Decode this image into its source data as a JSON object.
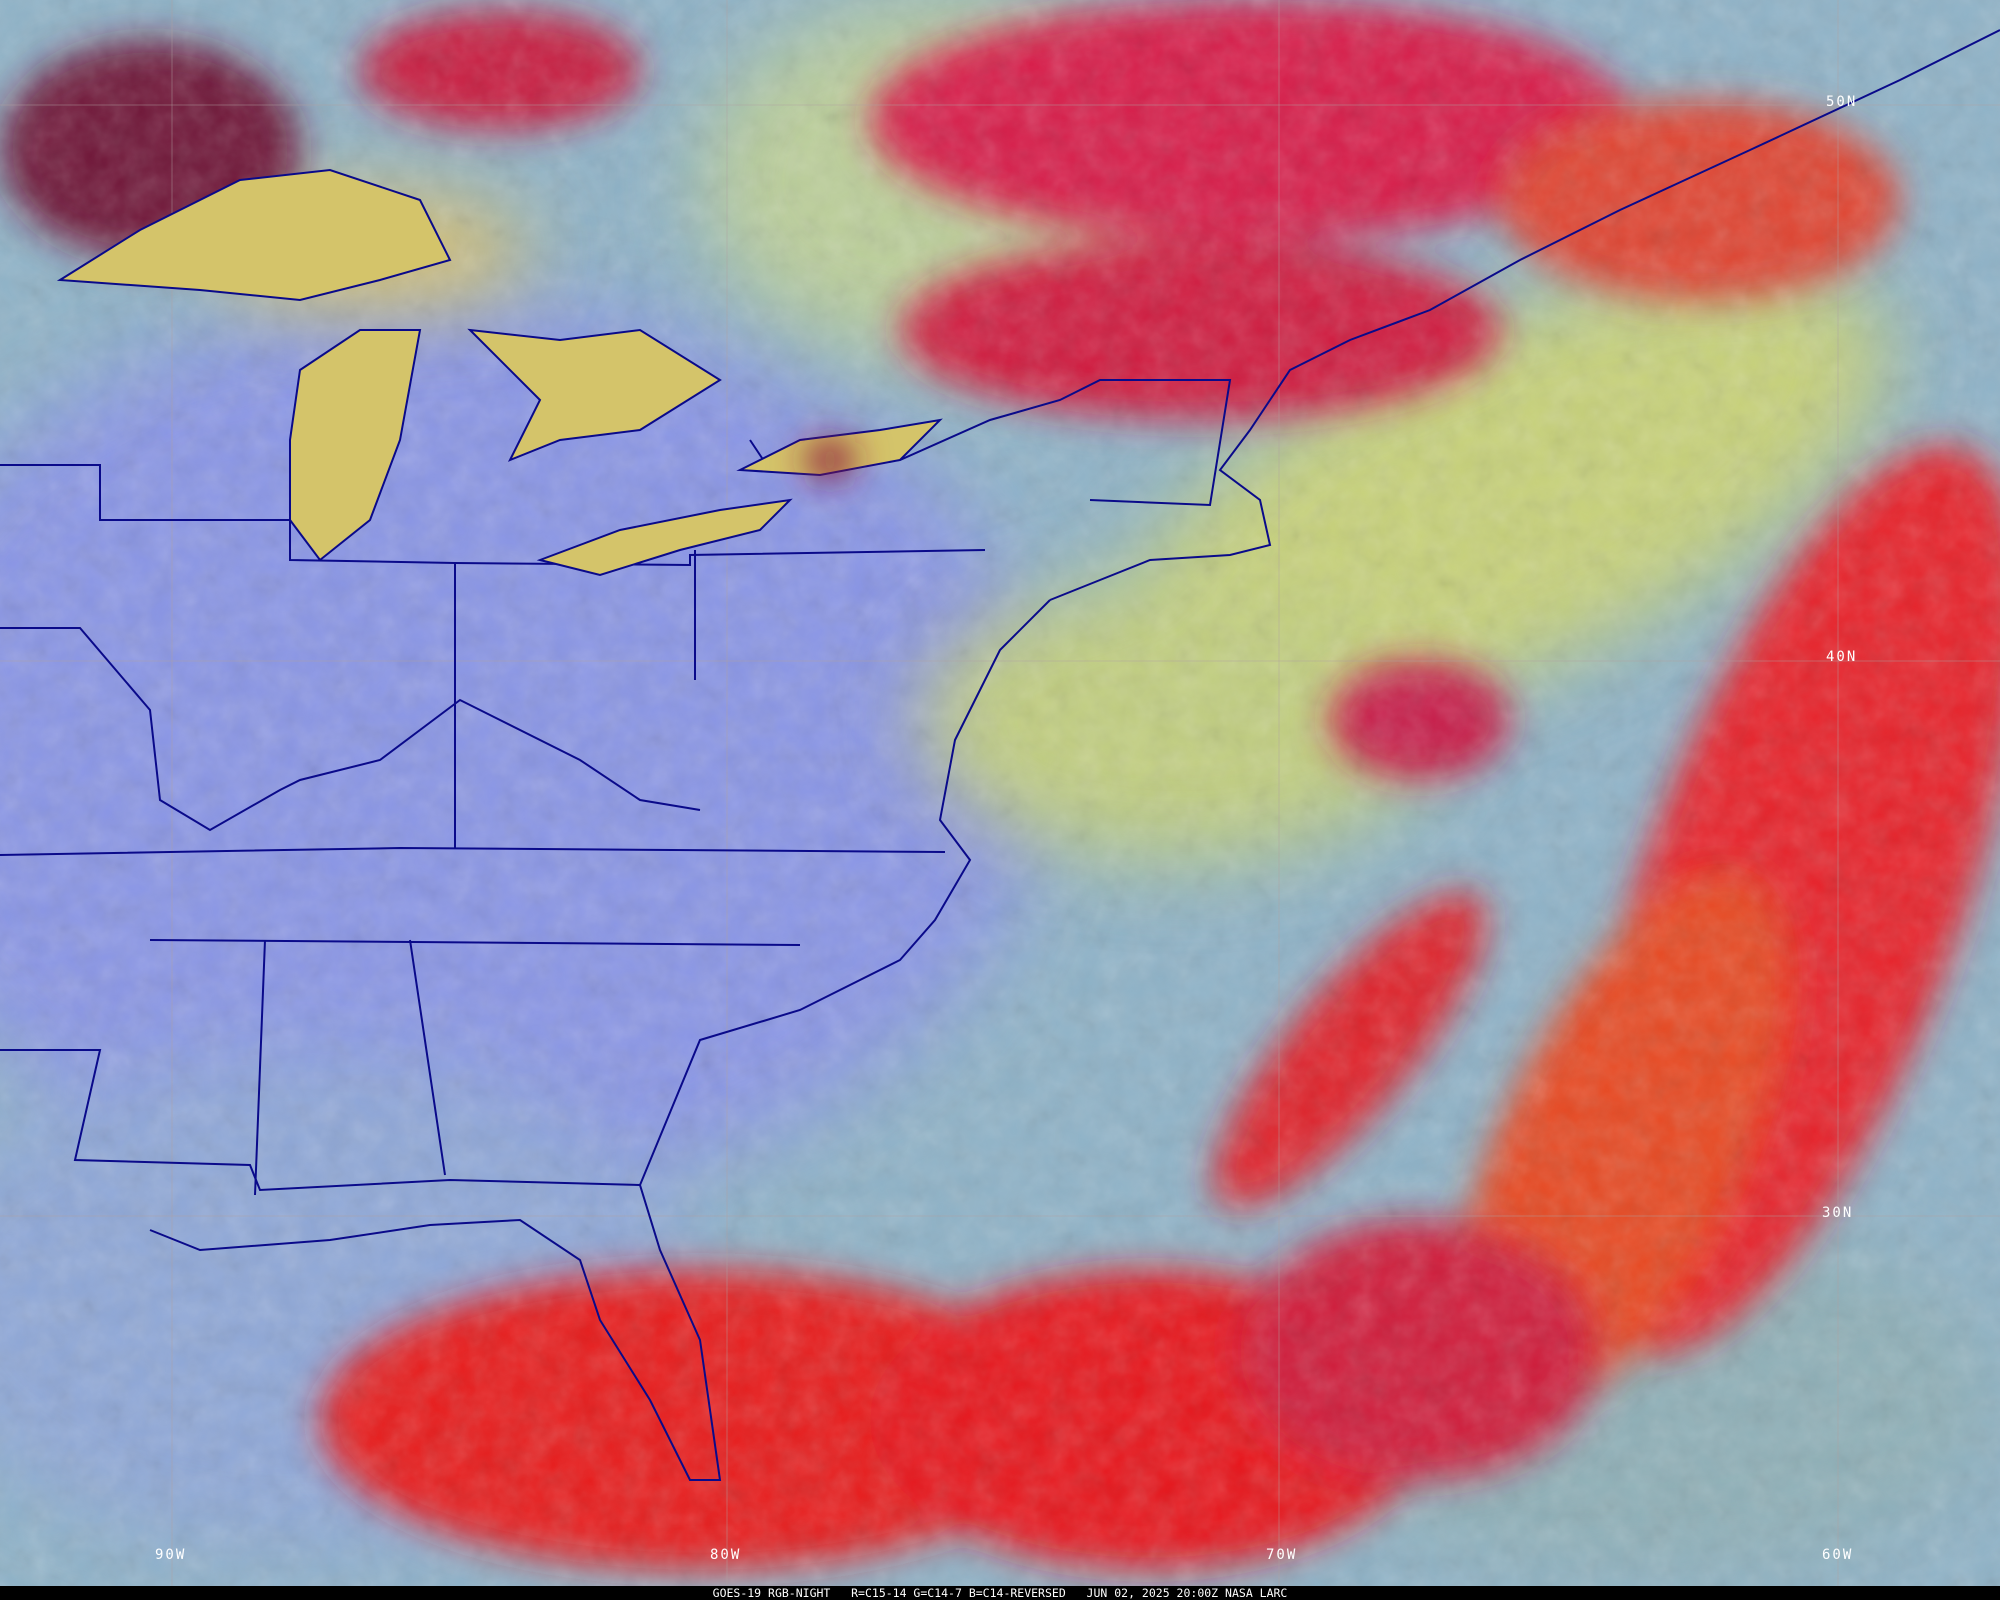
{
  "caption": {
    "satellite": "GOES-19 RGB-NIGHT",
    "channels": "R=C15-14 G=C14-7 B=C14-REVERSED",
    "datetime": "JUN 02, 2025 20:00Z",
    "credit": "NASA LARC"
  },
  "latitude_labels": [
    "50N",
    "40N",
    "30N"
  ],
  "longitude_labels": [
    "90W",
    "80W",
    "70W",
    "60W"
  ],
  "colors": {
    "land_clear": "#8a96e6",
    "ocean_clear": "#8fb3c8",
    "low_cloud": "#c8d27a",
    "high_cloud": "#e81a2a",
    "borders": "#0a0a8a"
  }
}
